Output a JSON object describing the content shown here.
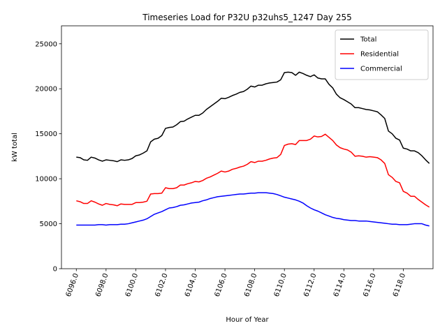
{
  "chart_data": {
    "type": "line",
    "title": "Timeseries Load for P32U p32uhs5_1247  Day 255",
    "xlabel": "Hour of Year",
    "ylabel": "kW total",
    "xlim": [
      6095.0,
      6120.0
    ],
    "ylim": [
      0,
      27000
    ],
    "x_tick_values": [
      6096,
      6098,
      6100,
      6102,
      6104,
      6106,
      6108,
      6110,
      6112,
      6114,
      6116,
      6118
    ],
    "x_tick_labels": [
      "6096.0",
      "6098.0",
      "6100.0",
      "6102.0",
      "6104.0",
      "6106.0",
      "6108.0",
      "6110.0",
      "6112.0",
      "6114.0",
      "6116.0",
      "6118.0"
    ],
    "y_tick_values": [
      0,
      5000,
      10000,
      15000,
      20000,
      25000
    ],
    "y_tick_labels": [
      "0",
      "5000",
      "10000",
      "15000",
      "20000",
      "25000"
    ],
    "legend_position": "top-right",
    "x_start": 6096.0,
    "x_step": 0.25,
    "series": [
      {
        "name": "Total",
        "color": "#000000",
        "values": [
          12400,
          12350,
          12100,
          12050,
          12400,
          12300,
          12100,
          11950,
          12100,
          12050,
          12000,
          11900,
          12100,
          12050,
          12100,
          12250,
          12550,
          12650,
          12850,
          13100,
          14100,
          14400,
          14500,
          14800,
          15600,
          15700,
          15750,
          16000,
          16350,
          16400,
          16650,
          16850,
          17050,
          17050,
          17300,
          17700,
          18000,
          18300,
          18600,
          18950,
          18900,
          19050,
          19250,
          19400,
          19600,
          19700,
          19950,
          20300,
          20200,
          20400,
          20400,
          20550,
          20650,
          20700,
          20750,
          21000,
          21800,
          21850,
          21800,
          21500,
          21850,
          21700,
          21500,
          21350,
          21550,
          21200,
          21100,
          21100,
          20500,
          20100,
          19400,
          19000,
          18800,
          18550,
          18300,
          17900,
          17900,
          17800,
          17700,
          17650,
          17550,
          17450,
          17100,
          16700,
          15300,
          15000,
          14500,
          14300,
          13400,
          13300,
          13100,
          13100,
          12900,
          12550,
          12100,
          11700
        ]
      },
      {
        "name": "Residential",
        "color": "#ff0000",
        "values": [
          7550,
          7450,
          7250,
          7250,
          7550,
          7400,
          7200,
          7050,
          7250,
          7150,
          7100,
          7000,
          7200,
          7150,
          7150,
          7150,
          7350,
          7350,
          7400,
          7500,
          8300,
          8350,
          8350,
          8400,
          9000,
          8900,
          8900,
          9000,
          9300,
          9300,
          9450,
          9550,
          9700,
          9650,
          9800,
          10050,
          10200,
          10400,
          10600,
          10850,
          10750,
          10850,
          11050,
          11150,
          11300,
          11400,
          11600,
          11900,
          11800,
          11950,
          11950,
          12050,
          12200,
          12300,
          12350,
          12700,
          13700,
          13850,
          13900,
          13800,
          14250,
          14250,
          14250,
          14400,
          14750,
          14650,
          14700,
          14950,
          14600,
          14250,
          13750,
          13450,
          13300,
          13200,
          12950,
          12500,
          12550,
          12500,
          12400,
          12450,
          12400,
          12350,
          12100,
          11700,
          10450,
          10150,
          9700,
          9550,
          8600,
          8400,
          8050,
          8050,
          7700,
          7400,
          7100,
          6850
        ]
      },
      {
        "name": "Commercial",
        "color": "#0000ff",
        "values": [
          4850,
          4850,
          4850,
          4850,
          4850,
          4850,
          4900,
          4900,
          4850,
          4900,
          4900,
          4900,
          4950,
          4950,
          5000,
          5100,
          5200,
          5300,
          5400,
          5550,
          5800,
          6050,
          6200,
          6350,
          6550,
          6750,
          6800,
          6900,
          7050,
          7100,
          7200,
          7300,
          7350,
          7400,
          7550,
          7650,
          7800,
          7900,
          8000,
          8050,
          8100,
          8150,
          8200,
          8250,
          8300,
          8300,
          8350,
          8400,
          8400,
          8450,
          8450,
          8450,
          8400,
          8350,
          8250,
          8100,
          7950,
          7850,
          7750,
          7650,
          7500,
          7300,
          7000,
          6750,
          6550,
          6400,
          6200,
          6000,
          5850,
          5700,
          5600,
          5550,
          5450,
          5400,
          5350,
          5350,
          5300,
          5300,
          5300,
          5250,
          5200,
          5150,
          5100,
          5050,
          5000,
          4950,
          4950,
          4900,
          4900,
          4900,
          4950,
          5000,
          5000,
          5000,
          4850,
          4750
        ]
      }
    ]
  }
}
